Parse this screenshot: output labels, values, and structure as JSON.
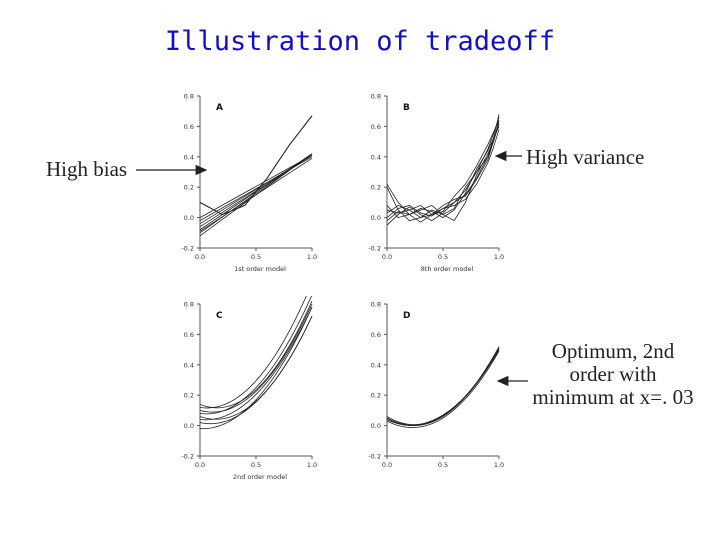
{
  "slide": {
    "title": "Illustration of tradeoff",
    "callouts": {
      "high_bias": "High bias",
      "high_variance": "High variance",
      "optimum": "Optimum, 2nd order with minimum at x=. 03"
    }
  },
  "chart_data": [
    {
      "type": "line",
      "panel": "A",
      "xlabel": "1st order model",
      "xlim": [
        0.0,
        1.0
      ],
      "ylim": [
        -0.2,
        0.8
      ],
      "xticks": [
        "0.0",
        "0.5",
        "1.0"
      ],
      "yticks": [
        "-0.2",
        "0.0",
        "0.2",
        "0.4",
        "0.6",
        "0.8"
      ],
      "true_curve": {
        "x": [
          0.0,
          0.2,
          0.4,
          0.6,
          0.8,
          1.0
        ],
        "y": [
          0.1,
          0.02,
          0.08,
          0.26,
          0.48,
          0.67
        ]
      },
      "fits": [
        {
          "intercept": -0.12,
          "slope": 0.54
        },
        {
          "intercept": -0.1,
          "slope": 0.52
        },
        {
          "intercept": -0.08,
          "slope": 0.5
        },
        {
          "intercept": -0.06,
          "slope": 0.47
        },
        {
          "intercept": -0.04,
          "slope": 0.45
        },
        {
          "intercept": -0.02,
          "slope": 0.42
        },
        {
          "intercept": 0.0,
          "slope": 0.41
        },
        {
          "intercept": -0.09,
          "slope": 0.48
        }
      ]
    },
    {
      "type": "line",
      "panel": "B",
      "xlabel": "8th order model",
      "xlim": [
        0.0,
        1.0
      ],
      "ylim": [
        -0.2,
        0.8
      ],
      "xticks": [
        "0.0",
        "0.5",
        "1.0"
      ],
      "yticks": [
        "-0.2",
        "0.0",
        "0.2",
        "0.4",
        "0.6",
        "0.8"
      ],
      "series_y_at_x": [
        0.0,
        0.1,
        0.2,
        0.3,
        0.4,
        0.5,
        0.6,
        0.7,
        0.8,
        0.9,
        0.95,
        1.0
      ],
      "series": [
        {
          "values": [
            0.2,
            0.05,
            -0.02,
            0.0,
            0.05,
            0.02,
            0.06,
            0.2,
            0.3,
            0.4,
            0.52,
            0.68
          ]
        },
        {
          "values": [
            0.03,
            0.08,
            0.05,
            0.0,
            0.02,
            0.08,
            0.12,
            0.14,
            0.25,
            0.38,
            0.5,
            0.62
          ]
        },
        {
          "values": [
            -0.05,
            0.02,
            0.07,
            0.02,
            -0.02,
            0.03,
            0.1,
            0.18,
            0.3,
            0.45,
            0.55,
            0.66
          ]
        },
        {
          "values": [
            0.08,
            0.0,
            0.02,
            0.06,
            0.04,
            0.0,
            0.05,
            0.16,
            0.32,
            0.44,
            0.52,
            0.6
          ]
        },
        {
          "values": [
            0.0,
            0.06,
            0.08,
            0.03,
            0.01,
            0.06,
            0.1,
            0.15,
            0.26,
            0.4,
            0.5,
            0.64
          ]
        },
        {
          "values": [
            0.22,
            0.1,
            0.02,
            -0.03,
            0.02,
            0.06,
            0.08,
            0.12,
            0.22,
            0.36,
            0.46,
            0.58
          ]
        },
        {
          "values": [
            -0.02,
            0.04,
            0.02,
            0.05,
            0.08,
            0.02,
            -0.02,
            0.1,
            0.28,
            0.42,
            0.5,
            0.62
          ]
        },
        {
          "values": [
            0.05,
            0.03,
            0.05,
            0.08,
            0.02,
            0.04,
            0.14,
            0.22,
            0.34,
            0.48,
            0.56,
            0.64
          ]
        }
      ]
    },
    {
      "type": "line",
      "panel": "C",
      "xlabel": "2nd order model",
      "xlim": [
        0.0,
        1.0
      ],
      "ylim": [
        -0.2,
        0.8
      ],
      "xticks": [
        "0.0",
        "0.5",
        "1.0"
      ],
      "yticks": [
        "-0.2",
        "0.0",
        "0.2",
        "0.4",
        "0.6",
        "0.8"
      ],
      "fits": [
        {
          "a": 0.94,
          "b": -0.12,
          "c": 0.12
        },
        {
          "a": 0.88,
          "b": -0.1,
          "c": 0.08
        },
        {
          "a": 0.9,
          "b": -0.2,
          "c": 0.1
        },
        {
          "a": 0.82,
          "b": -0.08,
          "c": 0.04
        },
        {
          "a": 0.98,
          "b": -0.3,
          "c": 0.14
        },
        {
          "a": 0.86,
          "b": -0.16,
          "c": 0.02
        },
        {
          "a": 0.92,
          "b": -0.26,
          "c": 0.06
        },
        {
          "a": 0.84,
          "b": -0.04,
          "c": -0.02
        }
      ]
    },
    {
      "type": "line",
      "panel": "D",
      "xlim": [
        0.0,
        1.0
      ],
      "ylim": [
        -0.2,
        0.8
      ],
      "xticks": [
        "0.0",
        "0.5",
        "1.0"
      ],
      "yticks": [
        "-0.2",
        "0.0",
        "0.2",
        "0.4",
        "0.6",
        "0.8"
      ],
      "fits": [
        {
          "a": 0.86,
          "b": -0.4,
          "c": 0.05
        },
        {
          "a": 0.82,
          "b": -0.36,
          "c": 0.04
        },
        {
          "a": 0.9,
          "b": -0.44,
          "c": 0.06
        },
        {
          "a": 0.84,
          "b": -0.38,
          "c": 0.03
        },
        {
          "a": 0.8,
          "b": -0.34,
          "c": 0.04
        },
        {
          "a": 0.88,
          "b": -0.42,
          "c": 0.05
        }
      ]
    }
  ]
}
